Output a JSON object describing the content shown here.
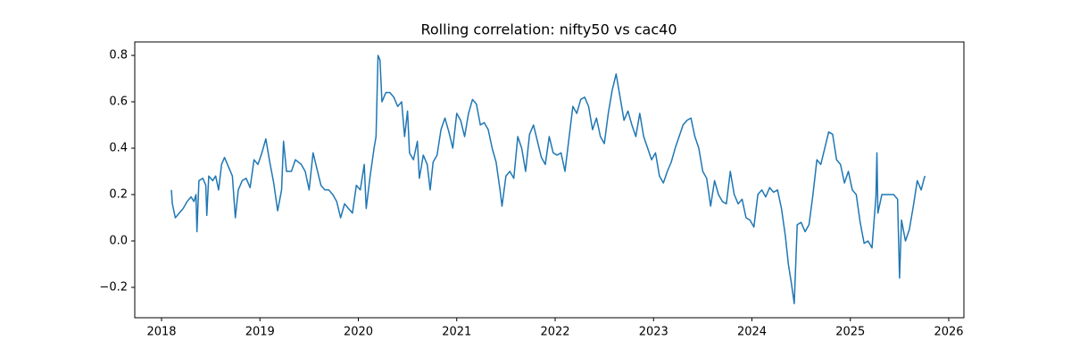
{
  "chart_data": {
    "type": "line",
    "title": "Rolling correlation: nifty50 vs cac40",
    "color": "#1f77b4",
    "xlim": [
      2017.728,
      2026.154
    ],
    "xticks": [
      2018,
      2019,
      2020,
      2021,
      2022,
      2023,
      2024,
      2025,
      2026
    ],
    "ylim": [
      -0.331,
      0.858
    ],
    "yticks": [
      {
        "value": -0.2,
        "label": "−0.2"
      },
      {
        "value": 0,
        "label": "0.0"
      },
      0.2,
      0.4,
      0.6,
      0.8
    ],
    "x": [
      2018.1,
      2018.11,
      2018.14,
      2018.18,
      2018.22,
      2018.26,
      2018.3,
      2018.33,
      2018.35,
      2018.36,
      2018.38,
      2018.42,
      2018.45,
      2018.46,
      2018.48,
      2018.52,
      2018.55,
      2018.58,
      2018.61,
      2018.64,
      2018.68,
      2018.72,
      2018.75,
      2018.78,
      2018.82,
      2018.86,
      2018.9,
      2018.94,
      2018.98,
      2019.02,
      2019.06,
      2019.1,
      2019.14,
      2019.18,
      2019.22,
      2019.24,
      2019.27,
      2019.32,
      2019.36,
      2019.42,
      2019.46,
      2019.5,
      2019.54,
      2019.58,
      2019.62,
      2019.66,
      2019.7,
      2019.74,
      2019.78,
      2019.82,
      2019.86,
      2019.9,
      2019.94,
      2019.98,
      2020.02,
      2020.06,
      2020.08,
      2020.12,
      2020.16,
      2020.18,
      2020.2,
      2020.22,
      2020.24,
      2020.28,
      2020.32,
      2020.36,
      2020.4,
      2020.44,
      2020.47,
      2020.5,
      2020.52,
      2020.56,
      2020.6,
      2020.62,
      2020.66,
      2020.7,
      2020.73,
      2020.76,
      2020.8,
      2020.84,
      2020.88,
      2020.92,
      2020.96,
      2021.0,
      2021.04,
      2021.08,
      2021.12,
      2021.16,
      2021.2,
      2021.24,
      2021.28,
      2021.32,
      2021.36,
      2021.4,
      2021.44,
      2021.46,
      2021.5,
      2021.54,
      2021.58,
      2021.62,
      2021.66,
      2021.7,
      2021.74,
      2021.78,
      2021.82,
      2021.86,
      2021.9,
      2021.94,
      2021.98,
      2022.02,
      2022.06,
      2022.1,
      2022.14,
      2022.18,
      2022.22,
      2022.26,
      2022.3,
      2022.34,
      2022.38,
      2022.42,
      2022.46,
      2022.5,
      2022.54,
      2022.58,
      2022.62,
      2022.66,
      2022.7,
      2022.74,
      2022.78,
      2022.82,
      2022.86,
      2022.9,
      2022.94,
      2022.98,
      2023.02,
      2023.06,
      2023.1,
      2023.14,
      2023.18,
      2023.22,
      2023.26,
      2023.3,
      2023.34,
      2023.38,
      2023.42,
      2023.46,
      2023.5,
      2023.54,
      2023.58,
      2023.62,
      2023.66,
      2023.7,
      2023.74,
      2023.78,
      2023.82,
      2023.86,
      2023.9,
      2023.94,
      2023.98,
      2024.02,
      2024.06,
      2024.1,
      2024.14,
      2024.18,
      2024.22,
      2024.26,
      2024.3,
      2024.34,
      2024.37,
      2024.4,
      2024.43,
      2024.46,
      2024.5,
      2024.54,
      2024.58,
      2024.62,
      2024.66,
      2024.7,
      2024.74,
      2024.78,
      2024.82,
      2024.86,
      2024.9,
      2024.94,
      2024.98,
      2025.02,
      2025.06,
      2025.1,
      2025.14,
      2025.18,
      2025.22,
      2025.26,
      2025.27,
      2025.28,
      2025.32,
      2025.38,
      2025.44,
      2025.48,
      2025.5,
      2025.52,
      2025.56,
      2025.6,
      2025.64,
      2025.68,
      2025.72,
      2025.75,
      2025.76
    ],
    "values": [
      0.22,
      0.16,
      0.1,
      0.12,
      0.14,
      0.17,
      0.19,
      0.17,
      0.2,
      0.04,
      0.26,
      0.27,
      0.24,
      0.11,
      0.28,
      0.26,
      0.28,
      0.22,
      0.33,
      0.36,
      0.32,
      0.28,
      0.1,
      0.22,
      0.26,
      0.27,
      0.23,
      0.35,
      0.33,
      0.38,
      0.44,
      0.34,
      0.25,
      0.13,
      0.22,
      0.43,
      0.3,
      0.3,
      0.35,
      0.33,
      0.3,
      0.22,
      0.38,
      0.31,
      0.24,
      0.22,
      0.22,
      0.2,
      0.17,
      0.1,
      0.16,
      0.14,
      0.12,
      0.24,
      0.22,
      0.33,
      0.14,
      0.28,
      0.4,
      0.45,
      0.8,
      0.78,
      0.6,
      0.64,
      0.64,
      0.62,
      0.58,
      0.6,
      0.45,
      0.56,
      0.38,
      0.35,
      0.43,
      0.27,
      0.37,
      0.33,
      0.22,
      0.34,
      0.37,
      0.48,
      0.53,
      0.47,
      0.4,
      0.55,
      0.52,
      0.45,
      0.55,
      0.61,
      0.59,
      0.5,
      0.51,
      0.48,
      0.4,
      0.34,
      0.22,
      0.15,
      0.28,
      0.3,
      0.27,
      0.45,
      0.4,
      0.3,
      0.46,
      0.5,
      0.43,
      0.36,
      0.33,
      0.45,
      0.38,
      0.37,
      0.38,
      0.3,
      0.44,
      0.58,
      0.55,
      0.61,
      0.62,
      0.58,
      0.48,
      0.53,
      0.45,
      0.42,
      0.55,
      0.65,
      0.72,
      0.62,
      0.52,
      0.56,
      0.5,
      0.45,
      0.55,
      0.45,
      0.4,
      0.35,
      0.38,
      0.28,
      0.25,
      0.3,
      0.34,
      0.4,
      0.45,
      0.5,
      0.52,
      0.53,
      0.45,
      0.4,
      0.3,
      0.27,
      0.15,
      0.26,
      0.2,
      0.17,
      0.16,
      0.3,
      0.2,
      0.16,
      0.18,
      0.1,
      0.09,
      0.06,
      0.2,
      0.22,
      0.19,
      0.23,
      0.21,
      0.22,
      0.14,
      0.02,
      -0.1,
      -0.18,
      -0.27,
      0.07,
      0.08,
      0.04,
      0.07,
      0.2,
      0.35,
      0.33,
      0.4,
      0.47,
      0.46,
      0.35,
      0.33,
      0.25,
      0.3,
      0.22,
      0.2,
      0.08,
      -0.01,
      0.0,
      -0.03,
      0.19,
      0.38,
      0.12,
      0.2,
      0.2,
      0.2,
      0.18,
      -0.16,
      0.09,
      0.0,
      0.05,
      0.15,
      0.26,
      0.22,
      0.27,
      0.28
    ]
  }
}
